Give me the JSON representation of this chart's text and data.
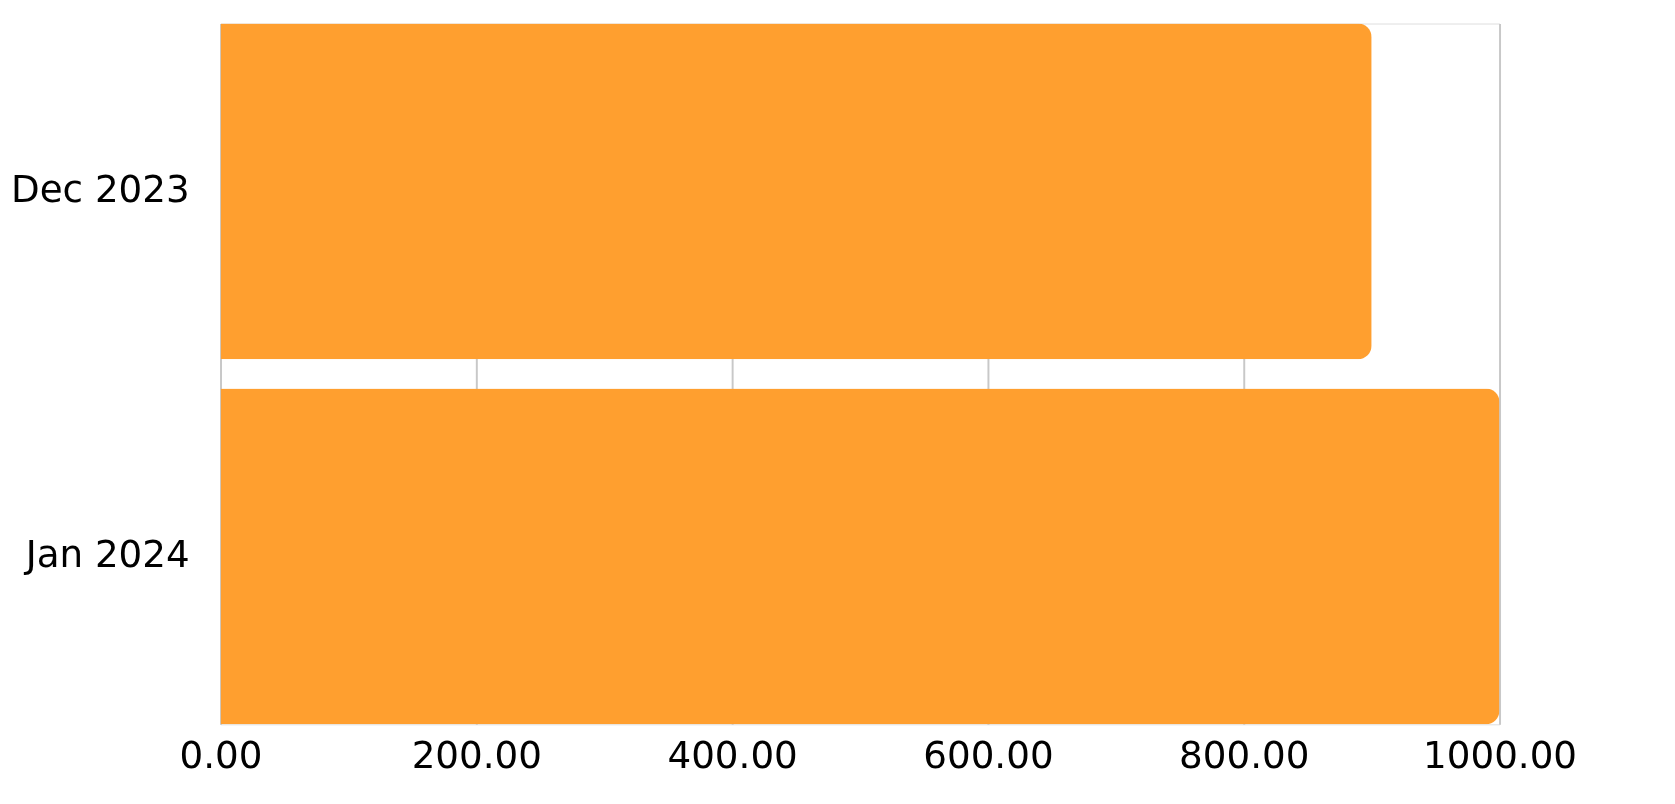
{
  "chart_data": {
    "type": "bar",
    "orientation": "horizontal",
    "categories": [
      "Dec 2023",
      "Jan 2024"
    ],
    "values": [
      900,
      1000
    ],
    "color": "#ff9f2f",
    "xlim": [
      0,
      1000
    ],
    "xticks": [
      {
        "value": 0,
        "label": "0.00"
      },
      {
        "value": 200,
        "label": "200.00"
      },
      {
        "value": 400,
        "label": "400.00"
      },
      {
        "value": 600,
        "label": "600.00"
      },
      {
        "value": 800,
        "label": "800.00"
      },
      {
        "value": 1000,
        "label": "1000.00"
      }
    ],
    "grid": "x"
  }
}
